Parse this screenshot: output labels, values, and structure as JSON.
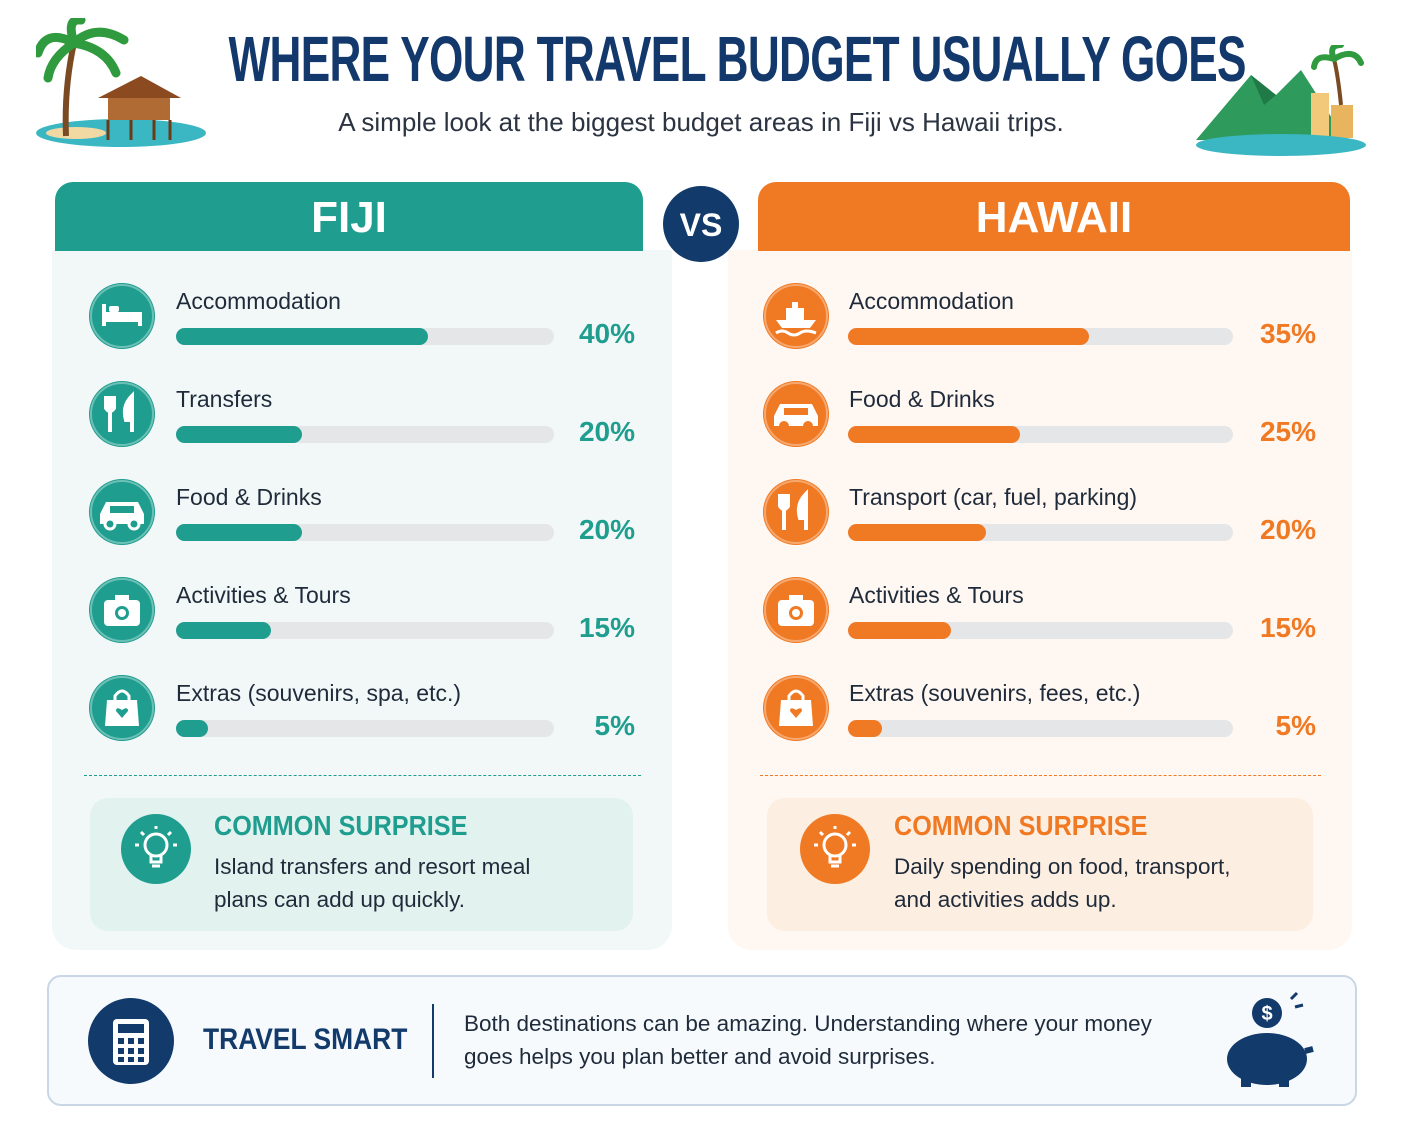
{
  "header": {
    "title": "WHERE YOUR TRAVEL BUDGET USUALLY GOES",
    "subtitle": "A simple look at the biggest budget areas in Fiji vs Hawaii trips."
  },
  "vs": "VS",
  "panels": [
    {
      "title": "FIJI",
      "color": "#1f9e8f",
      "items": [
        {
          "label": "Accommodation",
          "value": 40,
          "value_label": "40%"
        },
        {
          "label": "Transfers",
          "value": 20,
          "value_label": "20%"
        },
        {
          "label": "Food & Drinks",
          "value": 20,
          "value_label": "20%"
        },
        {
          "label": "Activities & Tours",
          "value": 15,
          "value_label": "15%"
        },
        {
          "label": "Extras (souvenirs, spa, etc.)",
          "value": 5,
          "value_label": "5%"
        }
      ],
      "surprise": {
        "title": "COMMON SURPRISE",
        "text": "Island transfers and resort meal plans can add up quickly."
      }
    },
    {
      "title": "HAWAII",
      "color": "#f07a24",
      "items": [
        {
          "label": "Accommodation",
          "value": 35,
          "value_label": "35%"
        },
        {
          "label": "Food & Drinks",
          "value": 25,
          "value_label": "25%"
        },
        {
          "label": "Transport (car, fuel, parking)",
          "value": 20,
          "value_label": "20%"
        },
        {
          "label": "Activities & Tours",
          "value": 15,
          "value_label": "15%"
        },
        {
          "label": "Extras (souvenirs, fees, etc.)",
          "value": 5,
          "value_label": "5%"
        }
      ],
      "surprise": {
        "title": "COMMON SURPRISE",
        "text": "Daily spending on food, transport, and activities adds up."
      }
    }
  ],
  "footer": {
    "title": "TRAVEL SMART",
    "text": "Both destinations can be amazing. Understanding where your money goes helps you plan better and avoid surprises."
  }
}
